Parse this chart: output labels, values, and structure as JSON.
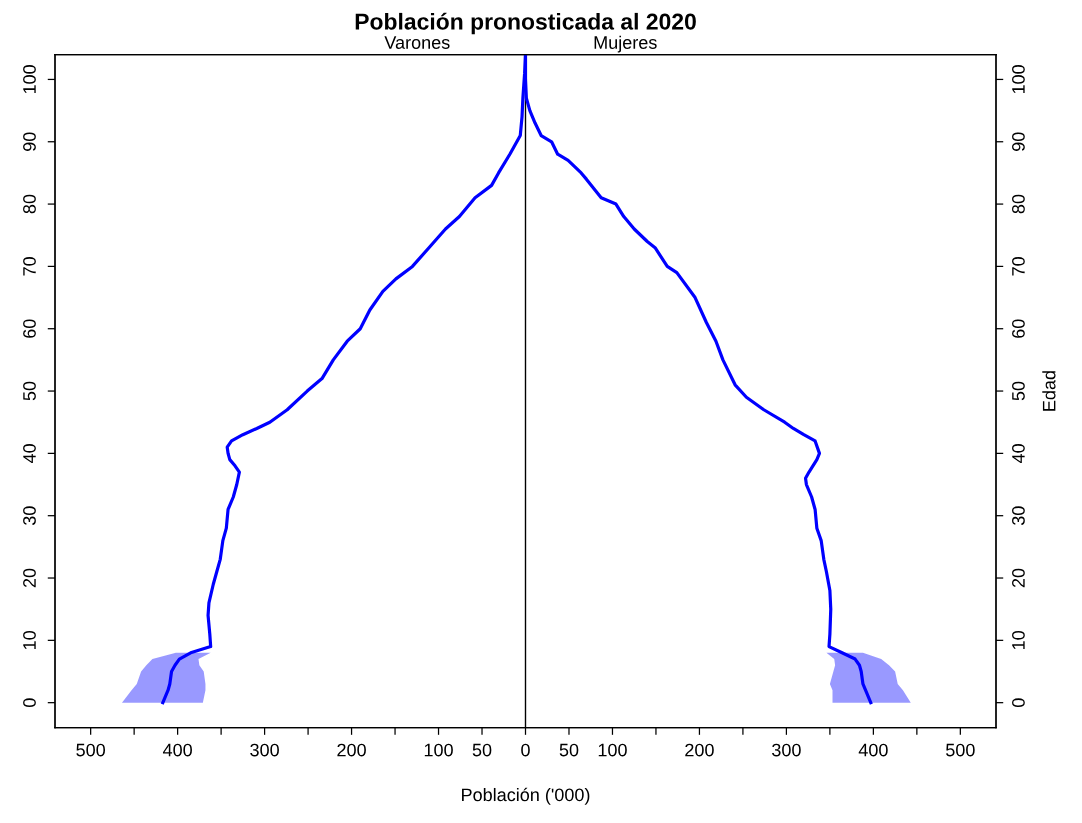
{
  "chart_data": {
    "type": "line",
    "orientation": "horizontal",
    "title": "Población pronosticada al 2020",
    "xlabel": "Población ('000)",
    "y2label": "Edad",
    "annotations": [
      "Varones",
      "Mujeres"
    ],
    "series": [
      {
        "color": "#0000ff",
        "x": [
          0,
          2,
          3,
          5,
          6,
          7,
          8,
          9,
          11,
          14,
          16,
          19,
          21,
          23,
          26,
          28,
          31,
          33,
          35,
          37,
          38,
          39,
          40,
          41,
          42,
          43,
          44,
          45,
          47,
          50,
          52,
          55,
          58,
          60,
          63,
          66,
          68,
          70,
          73,
          76,
          78,
          81,
          83,
          85,
          88,
          90,
          91,
          94,
          97,
          101,
          104
        ],
        "values": [
          -417,
          -411,
          -409,
          -407,
          -403,
          -398,
          -385,
          -362,
          -363,
          -365,
          -364,
          -359,
          -355,
          -351,
          -348,
          -344,
          -342,
          -336,
          -332,
          -329,
          -334,
          -340,
          -342,
          -343,
          -338,
          -325,
          -309,
          -294,
          -274,
          -251,
          -234,
          -221,
          -205,
          -190,
          -179,
          -164,
          -149,
          -130,
          -111,
          -92,
          -76,
          -58,
          -39,
          -31,
          -18,
          -10,
          -6,
          -4,
          -3,
          -1,
          0
        ],
        "lower": [
          -464,
          -453,
          -447,
          -442,
          -436,
          -429,
          -402,
          null,
          null,
          null,
          null,
          null,
          null,
          null,
          null,
          null,
          null,
          null,
          null,
          null,
          null,
          null,
          null,
          null,
          null,
          null,
          null,
          null,
          null,
          null,
          null,
          null,
          null,
          null,
          null,
          null,
          null,
          null,
          null,
          null,
          null,
          null,
          null,
          null,
          null,
          null,
          null,
          null,
          null,
          null,
          null
        ],
        "upper": [
          -371,
          -368,
          -368,
          -370,
          -375,
          -376,
          -362,
          null,
          null,
          null,
          null,
          null,
          null,
          null,
          null,
          null,
          null,
          null,
          null,
          null,
          null,
          null,
          null,
          null,
          null,
          null,
          null,
          null,
          null,
          null,
          null,
          null,
          null,
          null,
          null,
          null,
          null,
          null,
          null,
          null,
          null,
          null,
          null,
          null,
          null,
          null,
          null,
          null,
          null,
          null,
          null
        ]
      },
      {
        "color": "#0000ff",
        "x": [
          0,
          2,
          3,
          5,
          6,
          7,
          8,
          9,
          11,
          15,
          18,
          21,
          23,
          26,
          28,
          31,
          33,
          35,
          36,
          37,
          39,
          40,
          42,
          43,
          44,
          45,
          47,
          49,
          51,
          55,
          58,
          61,
          65,
          69,
          70,
          73,
          74,
          76,
          78,
          80,
          81,
          84,
          85,
          87,
          88,
          90,
          91,
          93,
          95,
          97,
          100,
          104
        ],
        "values": [
          397,
          391,
          388,
          386,
          384,
          379,
          364,
          349,
          350,
          351,
          350,
          346,
          343,
          340,
          335,
          333,
          329,
          323,
          322,
          326,
          335,
          338,
          333,
          320,
          308,
          298,
          274,
          254,
          241,
          227,
          219,
          208,
          195,
          174,
          163,
          149,
          140,
          125,
          113,
          104,
          87,
          70,
          64,
          49,
          37,
          30,
          18,
          11,
          5,
          1,
          0,
          0
        ],
        "lower": [
          353,
          353,
          350,
          354,
          356,
          355,
          346,
          null,
          null,
          null,
          null,
          null,
          null,
          null,
          null,
          null,
          null,
          null,
          null,
          null,
          null,
          null,
          null,
          null,
          null,
          null,
          null,
          null,
          null,
          null,
          null,
          null,
          null,
          null,
          null,
          null,
          null,
          null,
          null,
          null,
          null,
          null,
          null,
          null,
          null,
          null,
          null,
          null,
          null,
          null,
          null,
          null
        ],
        "upper": [
          443,
          434,
          428,
          425,
          418,
          409,
          388,
          null,
          null,
          null,
          null,
          null,
          null,
          null,
          null,
          null,
          null,
          null,
          null,
          null,
          null,
          null,
          null,
          null,
          null,
          null,
          null,
          null,
          null,
          null,
          null,
          null,
          null,
          null,
          null,
          null,
          null,
          null,
          null,
          null,
          null,
          null,
          null,
          null,
          null,
          null,
          null,
          null,
          null,
          null,
          null,
          null
        ]
      }
    ],
    "ref_lines": [
      {
        "axis": "x",
        "value": 0,
        "color": "#000000"
      }
    ],
    "xlim": [
      -541,
      541
    ],
    "xticks": [
      {
        "value": -500,
        "label": "500"
      },
      {
        "value": -450,
        "label": null
      },
      {
        "value": -400,
        "label": "400"
      },
      {
        "value": -350,
        "label": null
      },
      {
        "value": -300,
        "label": "300"
      },
      {
        "value": -250,
        "label": null
      },
      {
        "value": -200,
        "label": "200"
      },
      {
        "value": -150,
        "label": null
      },
      {
        "value": -100,
        "label": "100"
      },
      {
        "value": -50,
        "label": "50"
      },
      0,
      50,
      100,
      {
        "value": 150,
        "label": null
      },
      200,
      {
        "value": 250,
        "label": null
      },
      300,
      {
        "value": 350,
        "label": null
      },
      400,
      {
        "value": 450,
        "label": null
      },
      500
    ],
    "ylim": [
      -4,
      104
    ],
    "yticks": [
      0,
      10,
      20,
      30,
      40,
      50,
      60,
      70,
      80,
      90,
      100
    ],
    "y2lim": [
      -4,
      104
    ],
    "y2ticks": [
      0,
      10,
      20,
      30,
      40,
      50,
      60,
      70,
      80,
      90,
      100
    ]
  }
}
